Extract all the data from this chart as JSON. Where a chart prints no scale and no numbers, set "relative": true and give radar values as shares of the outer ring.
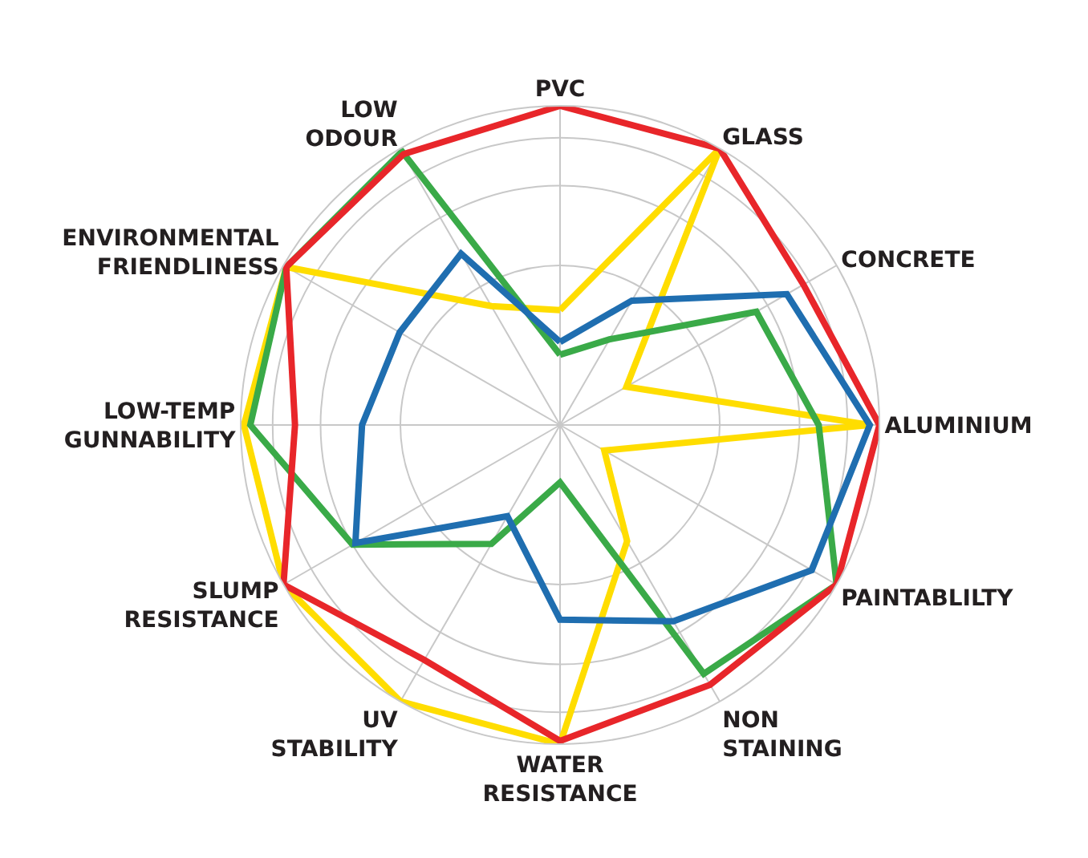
{
  "chart_data": {
    "type": "radar",
    "relative": true,
    "grid": true,
    "categories": [
      "PVC",
      "GLASS",
      "CONCRETE",
      "ALUMINIUM",
      "PAINTABLILTY",
      "NON STAINING",
      "WATER RESISTANCE",
      "UV STABILITY",
      "SLUMP RESISTANCE",
      "LOW-TEMP GUNNABILITY",
      "ENVIRONMENTAL FRIENDLINESS",
      "LOW ODOUR"
    ],
    "series": [
      {
        "color": "#ffdd00",
        "values": [
          0.36,
          1.0,
          0.24,
          0.97,
          0.16,
          0.42,
          1.0,
          1.0,
          1.0,
          0.99,
          0.99,
          0.43
        ]
      },
      {
        "color": "#3aaa48",
        "values": [
          0.22,
          0.31,
          0.71,
          0.81,
          1.0,
          0.9,
          0.18,
          0.43,
          0.75,
          0.97,
          0.99,
          0.99
        ]
      },
      {
        "color": "#1f6eb0",
        "values": [
          0.26,
          0.45,
          0.82,
          0.97,
          0.91,
          0.71,
          0.61,
          0.33,
          0.74,
          0.62,
          0.58,
          0.62
        ]
      },
      {
        "color": "#e8262a",
        "values": [
          1.0,
          1.0,
          0.88,
          1.0,
          1.0,
          0.94,
          0.99,
          0.85,
          1.0,
          0.83,
          0.99,
          0.98
        ]
      }
    ]
  }
}
